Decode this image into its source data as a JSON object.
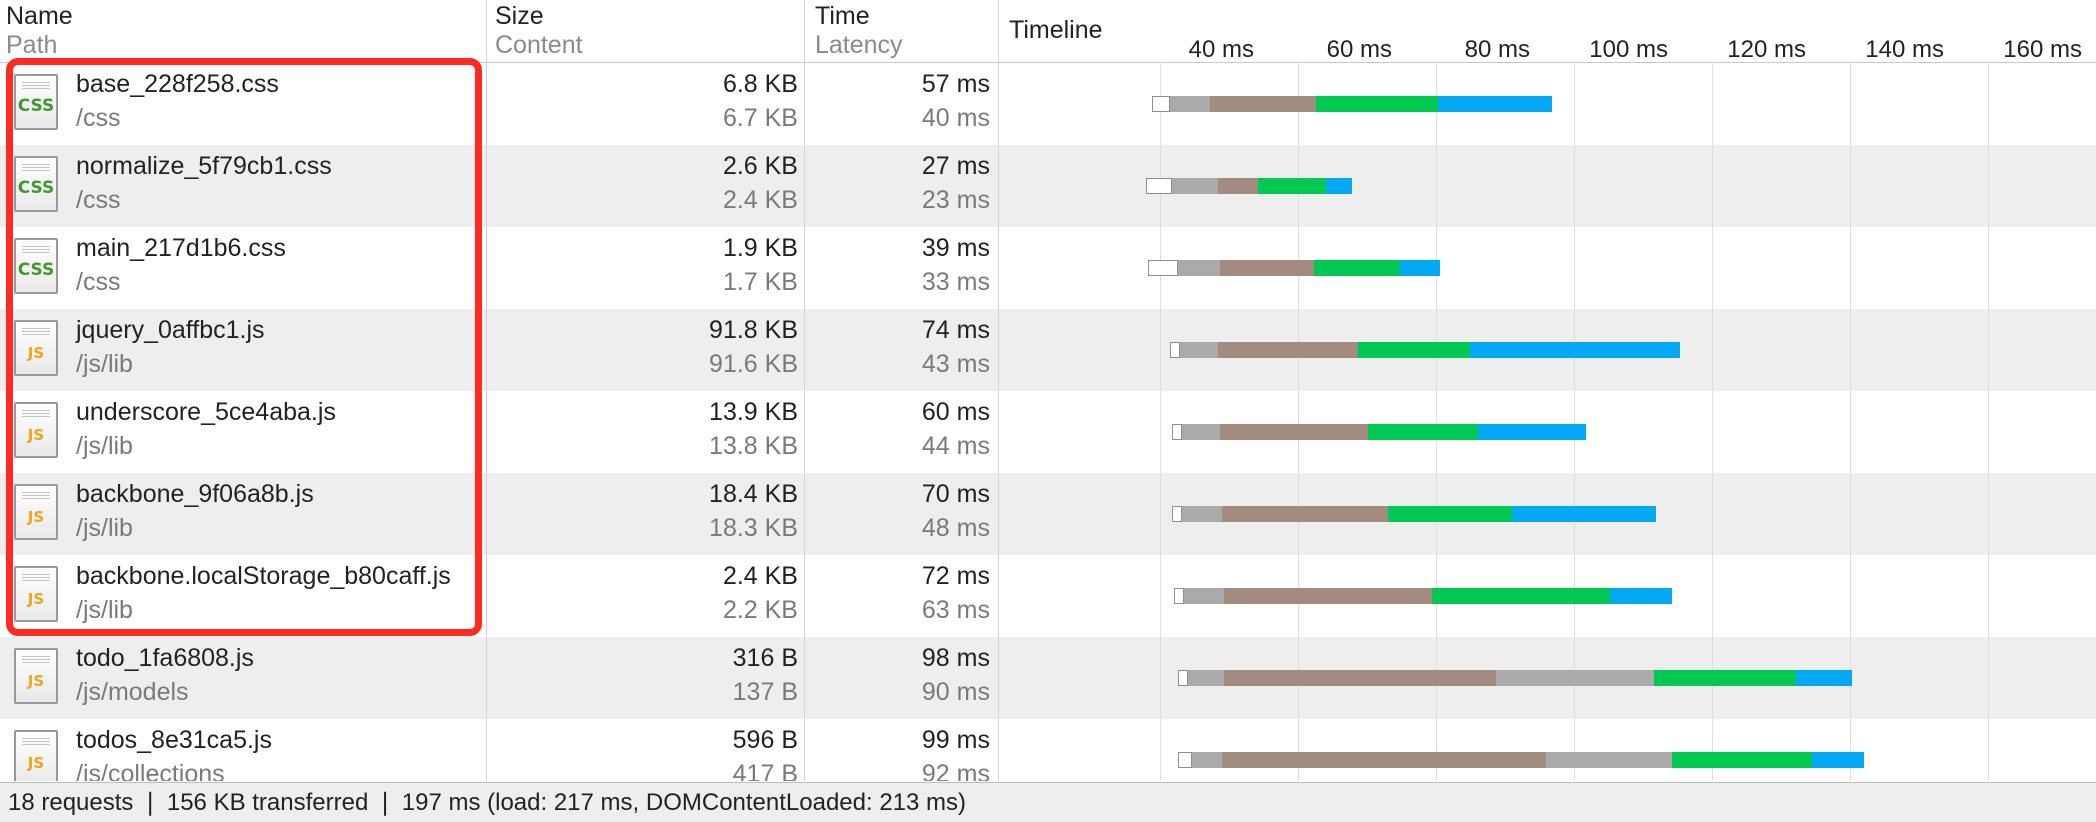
{
  "header": {
    "name": "Name",
    "path": "Path",
    "size": "Size",
    "content": "Content",
    "time": "Time",
    "latency": "Latency",
    "timeline": "Timeline",
    "ticks": [
      "40 ms",
      "60 ms",
      "80 ms",
      "100 ms",
      "120 ms",
      "140 ms",
      "160 ms"
    ]
  },
  "requests": [
    {
      "name": "base_228f258.css",
      "path": "/css",
      "type": "css",
      "type_label": "CSS",
      "size": "6.8 KB",
      "content": "6.7 KB",
      "time": "57 ms",
      "latency": "40 ms"
    },
    {
      "name": "normalize_5f79cb1.css",
      "path": "/css",
      "type": "css",
      "type_label": "CSS",
      "size": "2.6 KB",
      "content": "2.4 KB",
      "time": "27 ms",
      "latency": "23 ms"
    },
    {
      "name": "main_217d1b6.css",
      "path": "/css",
      "type": "css",
      "type_label": "CSS",
      "size": "1.9 KB",
      "content": "1.7 KB",
      "time": "39 ms",
      "latency": "33 ms"
    },
    {
      "name": "jquery_0affbc1.js",
      "path": "/js/lib",
      "type": "js",
      "type_label": "JS",
      "size": "91.8 KB",
      "content": "91.6 KB",
      "time": "74 ms",
      "latency": "43 ms"
    },
    {
      "name": "underscore_5ce4aba.js",
      "path": "/js/lib",
      "type": "js",
      "type_label": "JS",
      "size": "13.9 KB",
      "content": "13.8 KB",
      "time": "60 ms",
      "latency": "44 ms"
    },
    {
      "name": "backbone_9f06a8b.js",
      "path": "/js/lib",
      "type": "js",
      "type_label": "JS",
      "size": "18.4 KB",
      "content": "18.3 KB",
      "time": "70 ms",
      "latency": "48 ms"
    },
    {
      "name": "backbone.localStorage_b80caff.js",
      "path": "/js/lib",
      "type": "js",
      "type_label": "JS",
      "size": "2.4 KB",
      "content": "2.2 KB",
      "time": "72 ms",
      "latency": "63 ms"
    },
    {
      "name": "todo_1fa6808.js",
      "path": "/js/models",
      "type": "js",
      "type_label": "JS",
      "size": "316 B",
      "content": "137 B",
      "time": "98 ms",
      "latency": "90 ms"
    },
    {
      "name": "todos_8e31ca5.js",
      "path": "/js/collections",
      "type": "js",
      "type_label": "JS",
      "size": "596 B",
      "content": "417 B",
      "time": "99 ms",
      "latency": "92 ms"
    }
  ],
  "status": {
    "summary": "18 requests ❘ 156 KB transferred ❘ 197 ms (load: 217 ms, DOMContentLoaded: 213 ms)"
  },
  "colors": {
    "blocking": "#ffffff",
    "waiting": "#aaaaaa",
    "sending": "#a38b80",
    "receiving": "#00c853",
    "downloading": "#03a9f4",
    "highlight": "#ff2b22",
    "css_icon": "#3f9a2c",
    "js_icon": "#f0a51a"
  },
  "icons": {
    "css": "css-file-icon",
    "js": "js-file-icon"
  }
}
